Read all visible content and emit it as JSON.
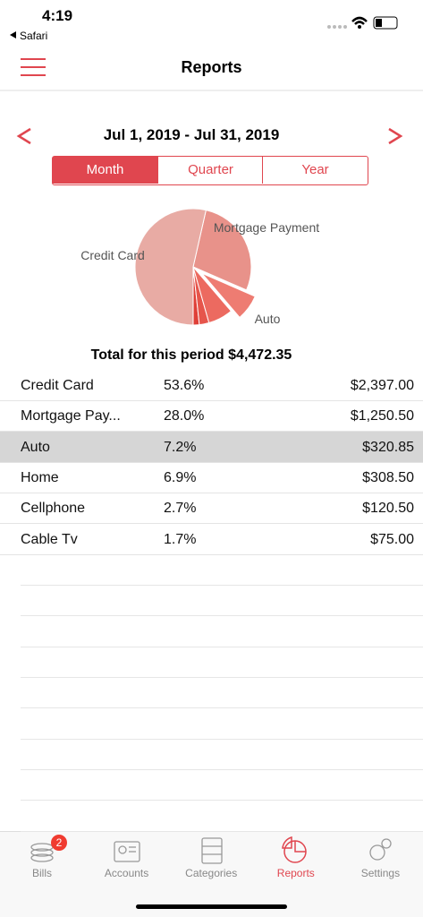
{
  "status_bar": {
    "time": "4:19",
    "back_app": "Safari"
  },
  "nav": {
    "title": "Reports"
  },
  "period": {
    "range": "Jul 1, 2019 - Jul 31, 2019",
    "segments": [
      "Month",
      "Quarter",
      "Year"
    ],
    "selected": "Month"
  },
  "chart_data": {
    "type": "pie",
    "categories": [
      "Credit Card",
      "Mortgage Payment",
      "Auto",
      null,
      null,
      null
    ],
    "values": [
      53.6,
      28.0,
      7.2,
      6.9,
      2.7,
      1.7
    ],
    "colors": [
      "#e8aba4",
      "#e8928a",
      "#ee7c72",
      "#ec6a60",
      "#e6554b",
      "#df3f37"
    ],
    "exploded": 2
  },
  "total": "Total for this period $4,472.35",
  "table": {
    "rows": [
      [
        "Credit Card",
        "53.6%",
        "$2,397.00"
      ],
      [
        "Mortgage Pay...",
        "28.0%",
        "$1,250.50"
      ],
      [
        "Auto",
        "7.2%",
        "$320.85"
      ],
      [
        "Home",
        "6.9%",
        "$308.50"
      ],
      [
        "Cellphone",
        "2.7%",
        "$120.50"
      ],
      [
        "Cable Tv",
        "1.7%",
        "$75.00"
      ]
    ],
    "highlighted": 2
  },
  "tabs": {
    "items": [
      "Bills",
      "Accounts",
      "Categories",
      "Reports",
      "Settings"
    ],
    "active": 3,
    "badge": "2"
  }
}
